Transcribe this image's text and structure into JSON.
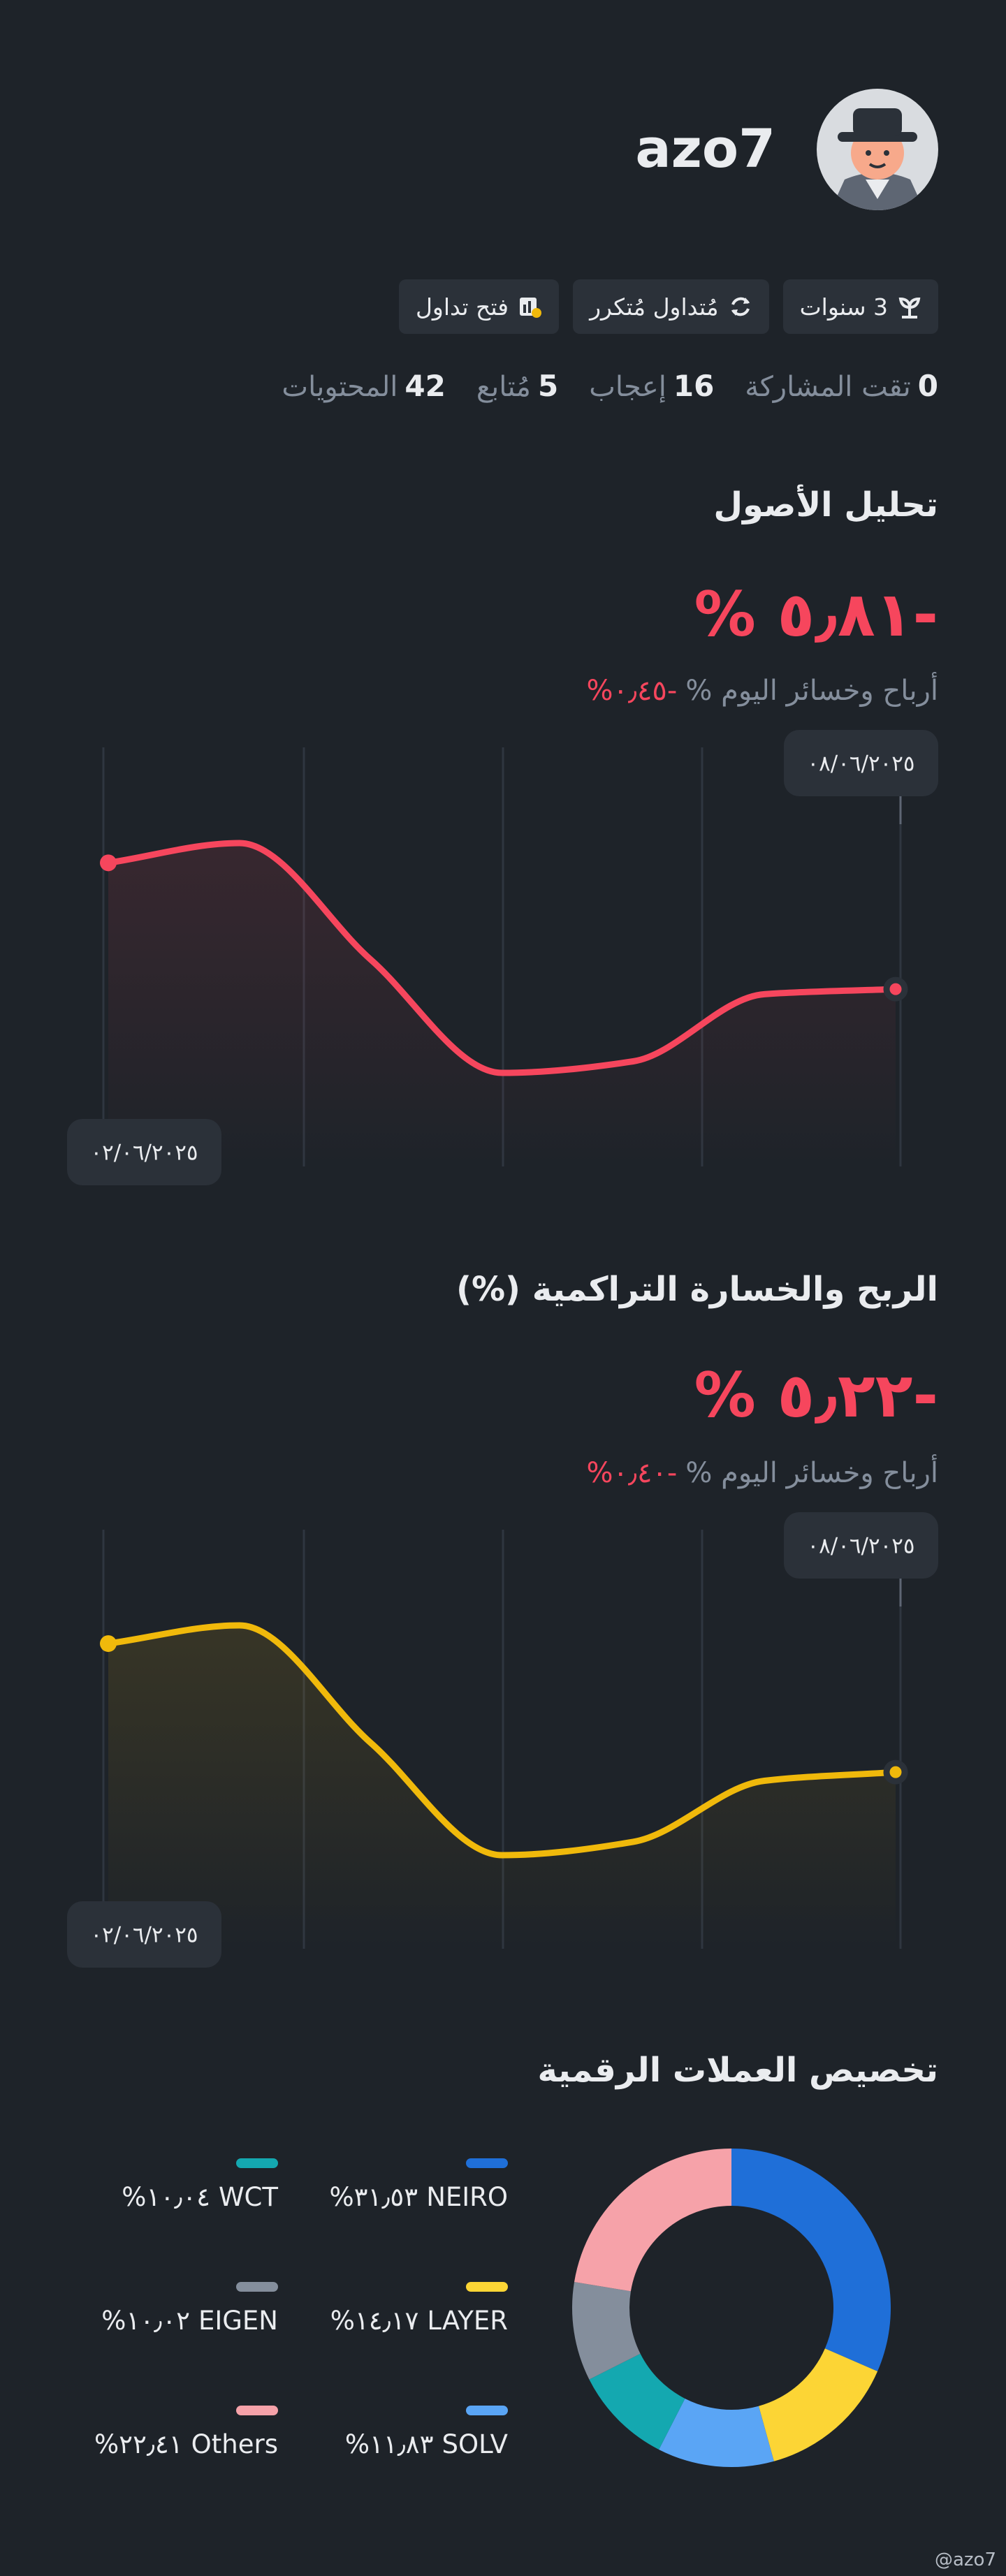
{
  "profile": {
    "username": "azo7",
    "tags": [
      "3 سنوات",
      "مُتداول مُتكرر",
      "فتح تداول"
    ],
    "stats": [
      {
        "value": 0,
        "label": "تقت المشاركة"
      },
      {
        "value": 16,
        "label": "إعجاب"
      },
      {
        "value": 5,
        "label": "مُتابع"
      },
      {
        "value": 42,
        "label": "المحتويات"
      }
    ]
  },
  "chart_data": [
    {
      "type": "line",
      "title": "تحليل الأصول",
      "headline": "% ٥٫٨١-",
      "today_label": "أرباح وخسائر اليوم %",
      "today_change": "%٠٫٤٥-",
      "categories": [
        "٠٢/٠٦/٢٠٢٥",
        null,
        null,
        null,
        null,
        null,
        "٠٨/٠٦/٢٠٢٥"
      ],
      "values": [
        0,
        0.91,
        -4.45,
        -9.66,
        -9.13,
        -6.04,
        -5.81
      ],
      "color": "#f6465d"
    },
    {
      "type": "line",
      "title": "الربح والخسارة التراكمية (%)",
      "headline": "% ٥٫٢٢-",
      "today_label": "أرباح وخسائر اليوم %",
      "today_change": "%٠٫٤٠-",
      "categories": [
        "٠٢/٠٦/٢٠٢٥",
        null,
        null,
        null,
        null,
        null,
        "٠٨/٠٦/٢٠٢٥"
      ],
      "values": [
        0,
        0.74,
        -4.03,
        -8.59,
        -8.05,
        -5.57,
        -5.22
      ],
      "color": "#f0b90b"
    },
    {
      "type": "donut",
      "title": "تخصيص العملات الرقمية",
      "categories": [
        "NEIRO",
        "LAYER",
        "SOLV",
        "WCT",
        "EIGEN",
        "Others"
      ],
      "values": [
        31.53,
        14.17,
        11.83,
        10.04,
        10.02,
        22.41
      ],
      "value_labels": [
        "%٣١٫٥٣",
        "%١٤٫١٧",
        "%١١٫٨٣",
        "%١٠٫٠٤",
        "%١٠٫٠٢",
        "%٢٢٫٤١"
      ],
      "colors": [
        "#1f6fd8",
        "#fcd535",
        "#5aa5f5",
        "#14a8b0",
        "#848e9c",
        "#f6a2a9"
      ]
    }
  ],
  "watermark": "@azo7"
}
